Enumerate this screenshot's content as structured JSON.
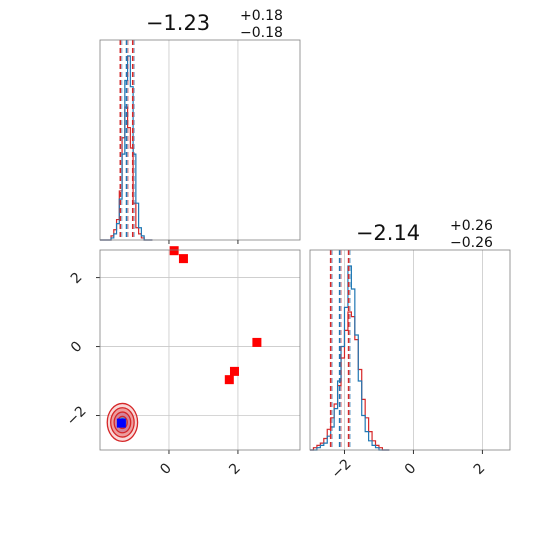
{
  "chart_data": {
    "type": "corner",
    "parameters": [
      {
        "title": {
          "median": "−1.23",
          "plus": "+0.18",
          "minus": "−0.18"
        },
        "xlim": [
          -2.0,
          3.8
        ],
        "ticks": [
          0,
          2
        ],
        "tick_labels": [
          "0",
          "2"
        ],
        "quantiles": [
          -1.41,
          -1.23,
          -1.05
        ],
        "quantile_color_blue": "#1f77b4",
        "quantile_color_red": "#d62728",
        "hist_bins": {
          "edges_start": -2.0,
          "bin_width": 0.08,
          "blue": [
            0,
            0,
            0,
            0,
            1,
            3,
            8,
            20,
            42,
            78,
            90,
            75,
            42,
            18,
            6,
            2,
            0,
            0,
            0
          ],
          "red": [
            0,
            0,
            0,
            0,
            2,
            5,
            10,
            24,
            50,
            65,
            55,
            45,
            18,
            6,
            3,
            1,
            0,
            0,
            0
          ]
        }
      },
      {
        "title": {
          "median": "−2.14",
          "plus": "+0.26",
          "minus": "−0.26"
        },
        "xlim": [
          -3.0,
          2.8
        ],
        "ticks": [
          -2,
          0,
          2
        ],
        "tick_labels": [
          "−2",
          "0",
          "2"
        ],
        "quantiles": [
          -2.4,
          -2.14,
          -1.88
        ],
        "hist_bins": {
          "edges_start": -3.0,
          "bin_width": 0.1,
          "blue": [
            0,
            0,
            1,
            2,
            3,
            6,
            10,
            18,
            30,
            45,
            62,
            80,
            70,
            50,
            30,
            15,
            8,
            4,
            2,
            1,
            0,
            0,
            0
          ],
          "red": [
            0,
            1,
            2,
            3,
            5,
            9,
            14,
            20,
            28,
            40,
            52,
            60,
            58,
            48,
            35,
            22,
            14,
            8,
            4,
            2,
            1,
            0,
            0
          ]
        }
      }
    ],
    "scatter": {
      "xlim": [
        -2.0,
        3.8
      ],
      "ylim": [
        -3.0,
        2.8
      ],
      "x_ticks": [
        0,
        2
      ],
      "y_ticks": [
        -2,
        0,
        2
      ],
      "x_tick_labels": [
        "0",
        "2"
      ],
      "y_tick_labels": [
        "−2",
        "0",
        "2"
      ],
      "red_points": [
        {
          "x": 0.15,
          "y": 2.78
        },
        {
          "x": 0.42,
          "y": 2.55
        },
        {
          "x": 2.55,
          "y": 0.12
        },
        {
          "x": 1.9,
          "y": -0.72
        },
        {
          "x": 1.75,
          "y": -0.96
        }
      ],
      "blue_point": {
        "x": -1.38,
        "y": -2.22
      },
      "density_center": {
        "x": -1.35,
        "y": -2.2
      },
      "density_spread": {
        "x": 0.2,
        "y": 0.25
      },
      "red_color": "#ff0000",
      "blue_color": "#0000ff",
      "contour_color": "#d62728",
      "fill_color": "#4f8fc9"
    },
    "grid": true
  }
}
